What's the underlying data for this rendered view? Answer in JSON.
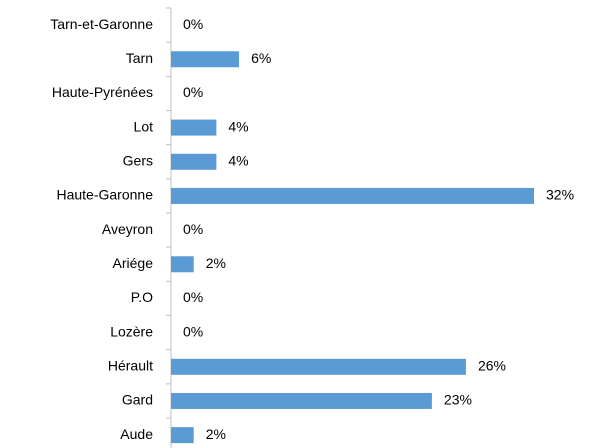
{
  "chart_data": {
    "type": "bar",
    "orientation": "horizontal",
    "categories": [
      "Tarn-et-Garonne",
      "Tarn",
      "Haute-Pyrénées",
      "Lot",
      "Gers",
      "Haute-Garonne",
      "Aveyron",
      "Ariége",
      "P.O",
      "Lozère",
      "Hérault",
      "Gard",
      "Aude"
    ],
    "values": [
      0,
      6,
      0,
      4,
      4,
      32,
      0,
      2,
      0,
      0,
      26,
      23,
      2
    ],
    "value_labels": [
      "0%",
      "6%",
      "0%",
      "4%",
      "4%",
      "32%",
      "0%",
      "2%",
      "0%",
      "0%",
      "26%",
      "23%",
      "2%"
    ],
    "color": "#5b9bd5"
  }
}
